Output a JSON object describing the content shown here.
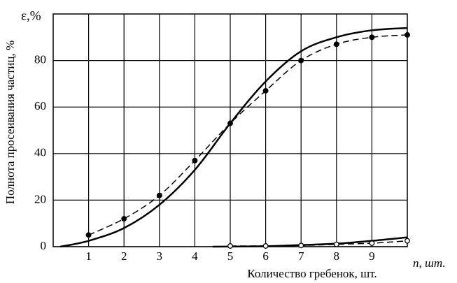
{
  "chart_data": {
    "type": "line",
    "y_label": "Полнота просеивания частиц, %",
    "y_unit": "ε,%",
    "x_label": "Количество гребенок, шт.",
    "x_unit": "n, шт.",
    "xlim": [
      0,
      10
    ],
    "xticks": [
      1,
      2,
      3,
      4,
      5,
      6,
      7,
      8,
      9
    ],
    "ylim": [
      0,
      100
    ],
    "yticks": [
      0,
      20,
      40,
      60,
      80
    ],
    "grid": true,
    "series": [
      {
        "color": "#000000",
        "style": "solid",
        "marker": "none",
        "x": [
          0.2,
          1,
          2,
          3,
          4,
          5,
          6,
          7,
          8,
          9,
          10
        ],
        "values": [
          0,
          2.5,
          8,
          18,
          33,
          53,
          71,
          84,
          90,
          93,
          94
        ]
      },
      {
        "color": "#000000",
        "style": "dashed",
        "marker": "filled",
        "x": [
          1,
          2,
          3,
          4,
          5,
          6,
          7,
          8,
          9,
          10
        ],
        "values": [
          5,
          12,
          22,
          37,
          53,
          67,
          80,
          87,
          90,
          91
        ]
      },
      {
        "color": "#000000",
        "style": "solid",
        "marker": "none",
        "x": [
          4.5,
          6,
          7,
          8,
          9,
          10
        ],
        "values": [
          0,
          0.2,
          0.7,
          1.3,
          2.5,
          4
        ]
      },
      {
        "color": "#000000",
        "style": "dashed",
        "marker": "open",
        "x": [
          5,
          6,
          7,
          8,
          9,
          10
        ],
        "values": [
          0.3,
          0.3,
          0.5,
          1,
          1.5,
          2.5
        ]
      }
    ]
  }
}
